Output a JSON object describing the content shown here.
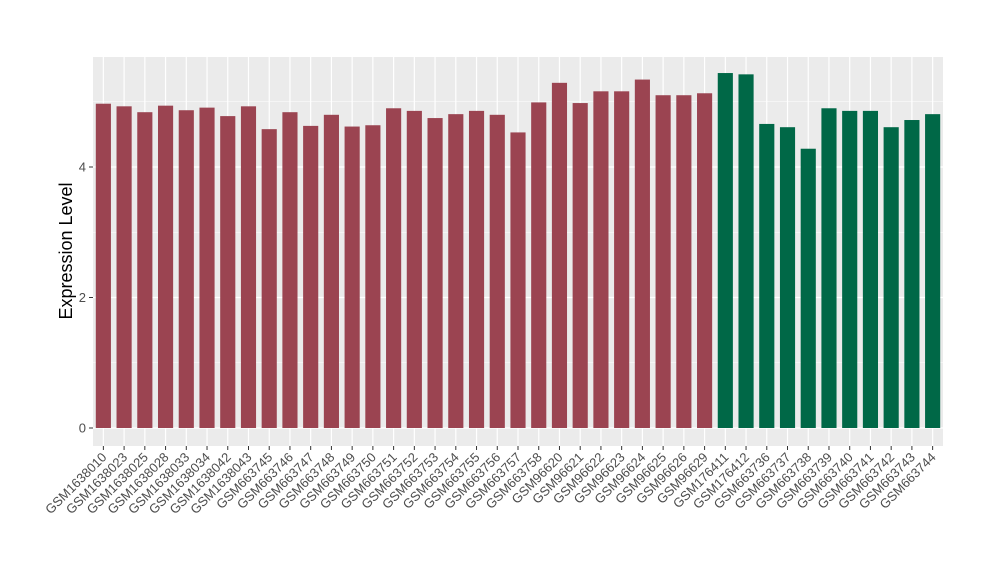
{
  "chart_data": {
    "type": "bar",
    "title": "",
    "xlabel": "",
    "ylabel": "Expression Level",
    "ylim": [
      0,
      5.75
    ],
    "yticks": [
      0,
      2,
      4
    ],
    "grid": true,
    "legend": "none",
    "colors": {
      "group1": "#9b4451",
      "group2": "#006847",
      "panel": "#ebebeb",
      "grid": "#ffffff"
    },
    "categories": [
      "GSM1638010",
      "GSM1638023",
      "GSM1638025",
      "GSM1638028",
      "GSM1638033",
      "GSM1638034",
      "GSM1638042",
      "GSM1638043",
      "GSM663745",
      "GSM663746",
      "GSM663747",
      "GSM663748",
      "GSM663749",
      "GSM663750",
      "GSM663751",
      "GSM663752",
      "GSM663753",
      "GSM663754",
      "GSM663755",
      "GSM663756",
      "GSM663757",
      "GSM663758",
      "GSM96620",
      "GSM96621",
      "GSM96622",
      "GSM96623",
      "GSM96624",
      "GSM96625",
      "GSM96626",
      "GSM96629",
      "GSM176411",
      "GSM176412",
      "GSM663736",
      "GSM663737",
      "GSM663738",
      "GSM663739",
      "GSM663740",
      "GSM663741",
      "GSM663742",
      "GSM663743",
      "GSM663744"
    ],
    "values": [
      4.97,
      4.93,
      4.84,
      4.94,
      4.87,
      4.91,
      4.78,
      4.93,
      4.58,
      4.84,
      4.63,
      4.8,
      4.62,
      4.64,
      4.9,
      4.86,
      4.75,
      4.81,
      4.86,
      4.8,
      4.53,
      4.99,
      5.29,
      4.98,
      5.16,
      5.16,
      5.34,
      5.1,
      5.1,
      5.13,
      5.44,
      5.42,
      4.66,
      4.61,
      4.28,
      4.9,
      4.86,
      4.86,
      4.61,
      4.72,
      4.81
    ],
    "groups": [
      0,
      0,
      0,
      0,
      0,
      0,
      0,
      0,
      0,
      0,
      0,
      0,
      0,
      0,
      0,
      0,
      0,
      0,
      0,
      0,
      0,
      0,
      0,
      0,
      0,
      0,
      0,
      0,
      0,
      0,
      1,
      1,
      1,
      1,
      1,
      1,
      1,
      1,
      1,
      1,
      1
    ]
  }
}
